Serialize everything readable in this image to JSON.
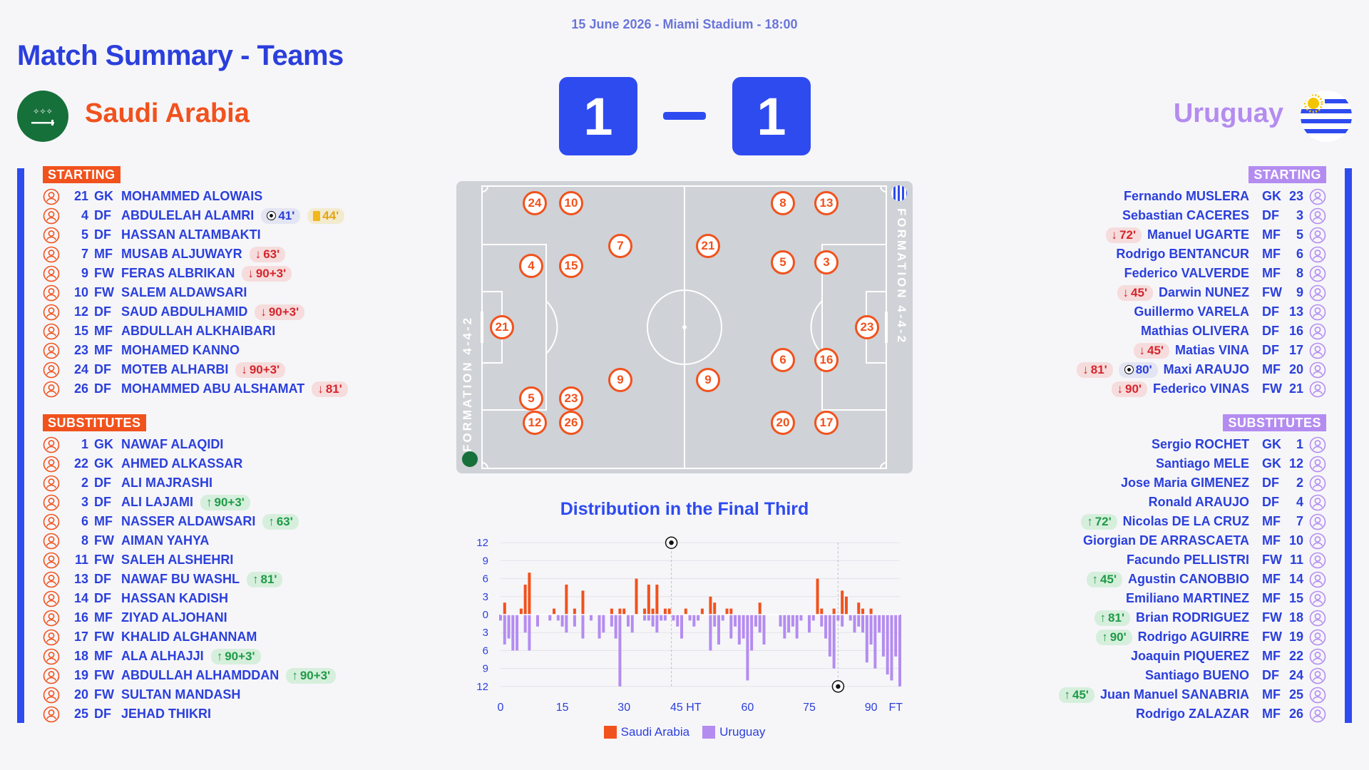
{
  "match_info": "15 June 2026 - Miami Stadium - 18:00",
  "page_title": "Match Summary - Teams",
  "home": {
    "name": "Saudi Arabia",
    "score": "1",
    "color": "#f1521d",
    "starting_label": "STARTING",
    "subs_label": "SUBSTITUTES",
    "formation": "FORMATION 4-4-2",
    "starting": [
      {
        "num": "21",
        "pos": "GK",
        "name": "MOHAMMED ALOWAIS",
        "events": []
      },
      {
        "num": "4",
        "pos": "DF",
        "name": "ABDULELAH ALAMRI",
        "events": [
          {
            "type": "goal",
            "text": "41'"
          },
          {
            "type": "card",
            "text": "44'"
          }
        ]
      },
      {
        "num": "5",
        "pos": "DF",
        "name": "HASSAN ALTAMBAKTI",
        "events": []
      },
      {
        "num": "7",
        "pos": "MF",
        "name": "MUSAB ALJUWAYR",
        "events": [
          {
            "type": "out",
            "text": "63'"
          }
        ]
      },
      {
        "num": "9",
        "pos": "FW",
        "name": "FERAS ALBRIKAN",
        "events": [
          {
            "type": "out",
            "text": "90+3'"
          }
        ]
      },
      {
        "num": "10",
        "pos": "FW",
        "name": "SALEM ALDAWSARI",
        "events": []
      },
      {
        "num": "12",
        "pos": "DF",
        "name": "SAUD ABDULHAMID",
        "events": [
          {
            "type": "out",
            "text": "90+3'"
          }
        ]
      },
      {
        "num": "15",
        "pos": "MF",
        "name": "ABDULLAH ALKHAIBARI",
        "events": []
      },
      {
        "num": "23",
        "pos": "MF",
        "name": "MOHAMED KANNO",
        "events": []
      },
      {
        "num": "24",
        "pos": "DF",
        "name": "MOTEB ALHARBI",
        "events": [
          {
            "type": "out",
            "text": "90+3'"
          }
        ]
      },
      {
        "num": "26",
        "pos": "DF",
        "name": "MOHAMMED ABU ALSHAMAT",
        "events": [
          {
            "type": "out",
            "text": "81'"
          }
        ]
      }
    ],
    "substitutes": [
      {
        "num": "1",
        "pos": "GK",
        "name": "NAWAF ALAQIDI",
        "events": []
      },
      {
        "num": "22",
        "pos": "GK",
        "name": "AHMED ALKASSAR",
        "events": []
      },
      {
        "num": "2",
        "pos": "DF",
        "name": "ALI MAJRASHI",
        "events": []
      },
      {
        "num": "3",
        "pos": "DF",
        "name": "ALI LAJAMI",
        "events": [
          {
            "type": "in",
            "text": "90+3'"
          }
        ]
      },
      {
        "num": "6",
        "pos": "MF",
        "name": "NASSER ALDAWSARI",
        "events": [
          {
            "type": "in",
            "text": "63'"
          }
        ]
      },
      {
        "num": "8",
        "pos": "FW",
        "name": "AIMAN YAHYA",
        "events": []
      },
      {
        "num": "11",
        "pos": "FW",
        "name": "SALEH ALSHEHRI",
        "events": []
      },
      {
        "num": "13",
        "pos": "DF",
        "name": "NAWAF BU WASHL",
        "events": [
          {
            "type": "in",
            "text": "81'"
          }
        ]
      },
      {
        "num": "14",
        "pos": "DF",
        "name": "HASSAN KADISH",
        "events": []
      },
      {
        "num": "16",
        "pos": "MF",
        "name": "ZIYAD ALJOHANI",
        "events": []
      },
      {
        "num": "17",
        "pos": "FW",
        "name": "KHALID ALGHANNAM",
        "events": []
      },
      {
        "num": "18",
        "pos": "MF",
        "name": "ALA ALHAJJI",
        "events": [
          {
            "type": "in",
            "text": "90+3'"
          }
        ]
      },
      {
        "num": "19",
        "pos": "FW",
        "name": "ABDULLAH ALHAMDDAN",
        "events": [
          {
            "type": "in",
            "text": "90+3'"
          }
        ]
      },
      {
        "num": "20",
        "pos": "FW",
        "name": "SULTAN MANDASH",
        "events": []
      },
      {
        "num": "25",
        "pos": "DF",
        "name": "JEHAD THIKRI",
        "events": []
      }
    ],
    "pitch_players": [
      "21",
      "4",
      "5",
      "24",
      "12",
      "15",
      "23",
      "10",
      "7",
      "9",
      "26"
    ]
  },
  "away": {
    "name": "Uruguay",
    "score": "1",
    "color": "#b48cf0",
    "starting_label": "STARTING",
    "subs_label": "SUBSTITUTES",
    "formation": "FORMATION 4-4-2",
    "starting": [
      {
        "num": "23",
        "pos": "GK",
        "name": "Fernando MUSLERA",
        "events": []
      },
      {
        "num": "3",
        "pos": "DF",
        "name": "Sebastian CACERES",
        "events": []
      },
      {
        "num": "5",
        "pos": "MF",
        "name": "Manuel UGARTE",
        "events": [
          {
            "type": "out",
            "text": "72'"
          }
        ]
      },
      {
        "num": "6",
        "pos": "MF",
        "name": "Rodrigo BENTANCUR",
        "events": []
      },
      {
        "num": "8",
        "pos": "MF",
        "name": "Federico VALVERDE",
        "events": []
      },
      {
        "num": "9",
        "pos": "FW",
        "name": "Darwin NUNEZ",
        "events": [
          {
            "type": "out",
            "text": "45'"
          }
        ]
      },
      {
        "num": "13",
        "pos": "DF",
        "name": "Guillermo VARELA",
        "events": []
      },
      {
        "num": "16",
        "pos": "DF",
        "name": "Mathias OLIVERA",
        "events": []
      },
      {
        "num": "17",
        "pos": "DF",
        "name": "Matias VINA",
        "events": [
          {
            "type": "out",
            "text": "45'"
          }
        ]
      },
      {
        "num": "20",
        "pos": "MF",
        "name": "Maxi ARAUJO",
        "events": [
          {
            "type": "out",
            "text": "81'"
          },
          {
            "type": "goal",
            "text": "80'"
          }
        ]
      },
      {
        "num": "21",
        "pos": "FW",
        "name": "Federico VINAS",
        "events": [
          {
            "type": "out",
            "text": "90'"
          }
        ]
      }
    ],
    "substitutes": [
      {
        "num": "1",
        "pos": "GK",
        "name": "Sergio ROCHET",
        "events": []
      },
      {
        "num": "12",
        "pos": "GK",
        "name": "Santiago MELE",
        "events": []
      },
      {
        "num": "2",
        "pos": "DF",
        "name": "Jose Maria GIMENEZ",
        "events": []
      },
      {
        "num": "4",
        "pos": "DF",
        "name": "Ronald ARAUJO",
        "events": []
      },
      {
        "num": "7",
        "pos": "MF",
        "name": "Nicolas DE LA CRUZ",
        "events": [
          {
            "type": "in",
            "text": "72'"
          }
        ]
      },
      {
        "num": "10",
        "pos": "MF",
        "name": "Giorgian DE ARRASCAETA",
        "events": []
      },
      {
        "num": "11",
        "pos": "FW",
        "name": "Facundo PELLISTRI",
        "events": []
      },
      {
        "num": "14",
        "pos": "MF",
        "name": "Agustin CANOBBIO",
        "events": [
          {
            "type": "in",
            "text": "45'"
          }
        ]
      },
      {
        "num": "15",
        "pos": "MF",
        "name": "Emiliano MARTINEZ",
        "events": []
      },
      {
        "num": "18",
        "pos": "FW",
        "name": "Brian RODRIGUEZ",
        "events": [
          {
            "type": "in",
            "text": "81'"
          }
        ]
      },
      {
        "num": "19",
        "pos": "FW",
        "name": "Rodrigo AGUIRRE",
        "events": [
          {
            "type": "in",
            "text": "90'"
          }
        ]
      },
      {
        "num": "22",
        "pos": "MF",
        "name": "Joaquin PIQUEREZ",
        "events": []
      },
      {
        "num": "24",
        "pos": "DF",
        "name": "Santiago BUENO",
        "events": []
      },
      {
        "num": "25",
        "pos": "MF",
        "name": "Juan Manuel SANABRIA",
        "events": [
          {
            "type": "in",
            "text": "45'"
          }
        ]
      },
      {
        "num": "26",
        "pos": "MF",
        "name": "Rodrigo ZALAZAR",
        "events": []
      }
    ],
    "pitch_players": [
      "23",
      "3",
      "16",
      "13",
      "17",
      "5",
      "6",
      "8",
      "21",
      "9",
      "20"
    ]
  },
  "chart_data": {
    "type": "bar",
    "title": "Distribution in the Final Third",
    "x_ticks": [
      {
        "value": 0,
        "label": "0"
      },
      {
        "value": 15,
        "label": "15"
      },
      {
        "value": 30,
        "label": "30"
      },
      {
        "value": 45,
        "label": "45 HT"
      },
      {
        "value": 60,
        "label": "60"
      },
      {
        "value": 75,
        "label": "75"
      },
      {
        "value": 90,
        "label": "90"
      },
      {
        "value": 96,
        "label": "FT"
      }
    ],
    "y_ticks_up": [
      "12",
      "9",
      "6",
      "3",
      "0"
    ],
    "y_ticks_down": [
      "3",
      "6",
      "9",
      "12"
    ],
    "ylim": [
      -12,
      12
    ],
    "xlim": [
      0,
      97
    ],
    "half_time_marker": 41.5,
    "second_marker": 82,
    "goals": [
      {
        "team": "Saudi Arabia",
        "minute": 41
      },
      {
        "team": "Uruguay",
        "minute": 80
      }
    ],
    "series": [
      {
        "name": "Saudi Arabia",
        "color": "#f1521d",
        "points": [
          [
            1,
            2
          ],
          [
            5,
            1
          ],
          [
            6,
            5
          ],
          [
            7,
            7
          ],
          [
            13,
            1
          ],
          [
            16,
            5
          ],
          [
            18,
            1
          ],
          [
            20,
            4
          ],
          [
            27,
            1
          ],
          [
            29,
            1
          ],
          [
            30,
            1
          ],
          [
            33,
            6
          ],
          [
            35,
            1
          ],
          [
            36,
            5
          ],
          [
            37,
            1
          ],
          [
            38,
            5
          ],
          [
            40,
            1
          ],
          [
            41,
            1
          ],
          [
            45,
            1
          ],
          [
            49,
            1
          ],
          [
            51,
            3
          ],
          [
            52,
            2
          ],
          [
            55,
            1
          ],
          [
            56,
            1
          ],
          [
            63,
            2
          ],
          [
            77,
            6
          ],
          [
            78,
            1
          ],
          [
            81,
            1
          ],
          [
            83,
            4
          ],
          [
            84,
            3
          ],
          [
            87,
            2
          ],
          [
            88,
            1
          ],
          [
            90,
            1
          ]
        ]
      },
      {
        "name": "Uruguay",
        "color": "#b48cf0",
        "points": [
          [
            0,
            1
          ],
          [
            1,
            5
          ],
          [
            2,
            4
          ],
          [
            3,
            6
          ],
          [
            4,
            6
          ],
          [
            6,
            3
          ],
          [
            7,
            6
          ],
          [
            9,
            2
          ],
          [
            12,
            1
          ],
          [
            14,
            1
          ],
          [
            15,
            2
          ],
          [
            16,
            3
          ],
          [
            18,
            2
          ],
          [
            20,
            4
          ],
          [
            22,
            1
          ],
          [
            24,
            4
          ],
          [
            25,
            3
          ],
          [
            27,
            2
          ],
          [
            28,
            4
          ],
          [
            29,
            12
          ],
          [
            31,
            2
          ],
          [
            32,
            3
          ],
          [
            35,
            1
          ],
          [
            36,
            1
          ],
          [
            37,
            2
          ],
          [
            38,
            3
          ],
          [
            39,
            1
          ],
          [
            40,
            1
          ],
          [
            42,
            1
          ],
          [
            43,
            2
          ],
          [
            44,
            4
          ],
          [
            46,
            1
          ],
          [
            47,
            2
          ],
          [
            48,
            1
          ],
          [
            51,
            6
          ],
          [
            52,
            2
          ],
          [
            53,
            5
          ],
          [
            54,
            1
          ],
          [
            56,
            4
          ],
          [
            57,
            2
          ],
          [
            58,
            5
          ],
          [
            59,
            4
          ],
          [
            60,
            11
          ],
          [
            61,
            6
          ],
          [
            62,
            2
          ],
          [
            63,
            3
          ],
          [
            64,
            5
          ],
          [
            68,
            2
          ],
          [
            69,
            4
          ],
          [
            70,
            3
          ],
          [
            71,
            2
          ],
          [
            72,
            4
          ],
          [
            73,
            1
          ],
          [
            75,
            3
          ],
          [
            76,
            1
          ],
          [
            78,
            2
          ],
          [
            79,
            4
          ],
          [
            80,
            7
          ],
          [
            81,
            9
          ],
          [
            82,
            1
          ],
          [
            83,
            2
          ],
          [
            85,
            1
          ],
          [
            86,
            3
          ],
          [
            87,
            2
          ],
          [
            88,
            3
          ],
          [
            89,
            8
          ],
          [
            90,
            5
          ],
          [
            91,
            9
          ],
          [
            92,
            3
          ],
          [
            93,
            7
          ],
          [
            94,
            10
          ],
          [
            95,
            11
          ],
          [
            96,
            7
          ],
          [
            97,
            12
          ]
        ]
      }
    ]
  },
  "icons": {
    "player": "user-circle-icon",
    "goal": "football-icon",
    "card": "yellow-card-icon",
    "in": "arrow-up-icon",
    "out": "arrow-down-icon"
  }
}
